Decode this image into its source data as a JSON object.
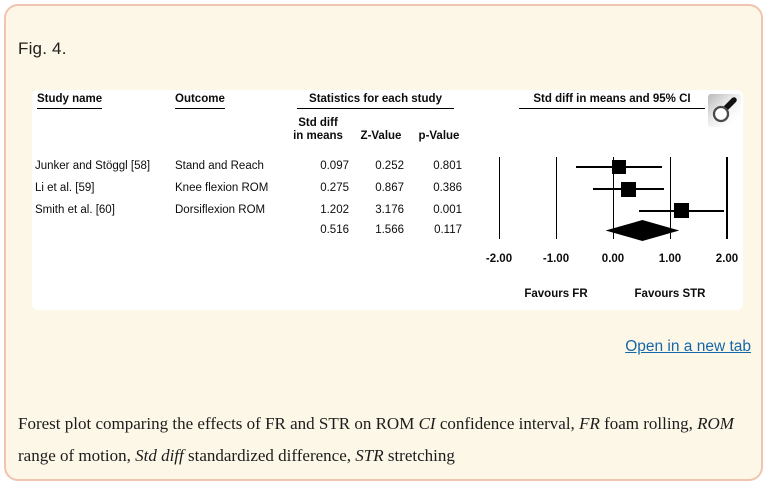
{
  "figure": {
    "label": "Fig. 4."
  },
  "table": {
    "headers": {
      "study": "Study name",
      "outcome": "Outcome",
      "stats_group": "Statistics for each study",
      "ci_group": "Std diff in means and 95% CI",
      "std_diff_line1": "Std diff",
      "std_diff_line2": "in means",
      "z": "Z-Value",
      "p": "p-Value"
    }
  },
  "chart_data": {
    "type": "forest",
    "title": "Std diff in means and 95% CI",
    "xlim": [
      -2,
      2
    ],
    "x_ticks": [
      -2,
      -1,
      0,
      1,
      2
    ],
    "x_tick_labels": [
      "-2.00",
      "-1.00",
      "0.00",
      "1.00",
      "2.00"
    ],
    "favours": [
      {
        "label": "Favours FR",
        "x": -1
      },
      {
        "label": "Favours STR",
        "x": 1
      }
    ],
    "studies": [
      {
        "name": "Junker and Stöggl [58]",
        "outcome": "Stand and Reach",
        "std_diff": "0.097",
        "z_value": "0.252",
        "p_value": "0.801",
        "value": 0.097,
        "ci_low": -0.657,
        "ci_high": 0.851
      },
      {
        "name": "Li et al. [59]",
        "outcome": "Knee flexion ROM",
        "std_diff": "0.275",
        "z_value": "0.867",
        "p_value": "0.386",
        "value": 0.275,
        "ci_low": -0.347,
        "ci_high": 0.897
      },
      {
        "name": "Smith et al. [60]",
        "outcome": "Dorsiflexion ROM",
        "std_diff": "1.202",
        "z_value": "3.176",
        "p_value": "0.001",
        "value": 1.202,
        "ci_low": 0.46,
        "ci_high": 1.944
      }
    ],
    "summary": {
      "std_diff": "0.516",
      "z_value": "1.566",
      "p_value": "0.117",
      "value": 0.516,
      "ci_low": -0.13,
      "ci_high": 1.162
    }
  },
  "actions": {
    "open_link": "Open in a new tab"
  },
  "icons": {
    "magnifier": "magnifier-icon"
  },
  "caption": {
    "segments": [
      {
        "text": "Forest plot comparing the effects of FR and STR on ROM "
      },
      {
        "text": "CI",
        "italic": true
      },
      {
        "text": " confidence interval, "
      },
      {
        "text": "FR",
        "italic": true
      },
      {
        "text": " foam rolling, "
      },
      {
        "text": "ROM",
        "italic": true
      },
      {
        "text": " range of motion, "
      },
      {
        "text": "Std diff",
        "italic": true
      },
      {
        "text": " standardized difference, "
      },
      {
        "text": "STR",
        "italic": true
      },
      {
        "text": " stretching"
      }
    ]
  },
  "colors": {
    "card_bg": "#fdf7e8",
    "card_border": "#f0c4ae",
    "link": "#1568a8",
    "plot_fg": "#000000"
  }
}
